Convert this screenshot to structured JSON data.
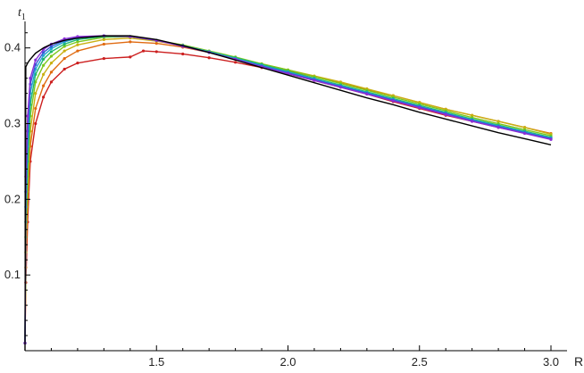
{
  "chart_data": {
    "type": "line",
    "ylabel": "t",
    "ylabel_subscript": "1",
    "xlabel": "R",
    "xlim": [
      1.0,
      3.0
    ],
    "ylim": [
      0.0,
      0.435
    ],
    "xticks": [
      1.5,
      2.0,
      2.5,
      3.0
    ],
    "xtick_labels": [
      "1.5",
      "2.0",
      "2.5",
      "3.0"
    ],
    "yticks": [
      0.1,
      0.2,
      0.3,
      0.4
    ],
    "ytick_labels": [
      "0.1",
      "0.2",
      "0.3",
      "0.4"
    ],
    "grid": false,
    "series": [
      {
        "color": "#cc1f1f",
        "markers": true,
        "x": [
          1.0,
          1.003,
          1.01,
          1.02,
          1.04,
          1.07,
          1.1,
          1.15,
          1.2,
          1.3,
          1.4,
          1.45,
          1.5,
          1.6,
          1.7,
          1.8,
          1.9,
          2.0,
          2.1,
          2.2,
          2.3,
          2.4,
          2.5,
          2.6,
          2.7,
          2.8,
          2.9,
          3.0
        ],
        "y": [
          0.01,
          0.09,
          0.17,
          0.25,
          0.3,
          0.335,
          0.355,
          0.372,
          0.38,
          0.386,
          0.388,
          0.396,
          0.395,
          0.392,
          0.387,
          0.381,
          0.374,
          0.366,
          0.357,
          0.348,
          0.339,
          0.329,
          0.32,
          0.311,
          0.303,
          0.295,
          0.288,
          0.281
        ]
      },
      {
        "color": "#e06a10",
        "markers": true,
        "x": [
          1.0,
          1.003,
          1.01,
          1.02,
          1.04,
          1.07,
          1.1,
          1.15,
          1.2,
          1.3,
          1.4,
          1.5,
          1.6,
          1.7,
          1.8,
          1.9,
          2.0,
          2.1,
          2.2,
          2.3,
          2.4,
          2.5,
          2.6,
          2.7,
          2.8,
          2.9,
          3.0
        ],
        "y": [
          0.01,
          0.11,
          0.19,
          0.27,
          0.32,
          0.35,
          0.368,
          0.386,
          0.396,
          0.405,
          0.408,
          0.406,
          0.401,
          0.394,
          0.386,
          0.378,
          0.37,
          0.362,
          0.354,
          0.345,
          0.337,
          0.328,
          0.319,
          0.311,
          0.303,
          0.295,
          0.287
        ]
      },
      {
        "color": "#c9b012",
        "markers": true,
        "x": [
          1.0,
          1.003,
          1.01,
          1.02,
          1.04,
          1.07,
          1.1,
          1.15,
          1.2,
          1.3,
          1.4,
          1.5,
          1.6,
          1.7,
          1.8,
          1.9,
          2.0,
          2.1,
          2.2,
          2.3,
          2.4,
          2.5,
          2.6,
          2.7,
          2.8,
          2.9,
          3.0
        ],
        "y": [
          0.01,
          0.13,
          0.21,
          0.29,
          0.34,
          0.365,
          0.38,
          0.396,
          0.404,
          0.411,
          0.413,
          0.409,
          0.403,
          0.395,
          0.387,
          0.379,
          0.371,
          0.363,
          0.355,
          0.346,
          0.337,
          0.328,
          0.319,
          0.311,
          0.303,
          0.295,
          0.286
        ]
      },
      {
        "color": "#7cc81e",
        "markers": true,
        "x": [
          1.0,
          1.003,
          1.01,
          1.02,
          1.04,
          1.07,
          1.1,
          1.15,
          1.2,
          1.3,
          1.4,
          1.5,
          1.6,
          1.7,
          1.8,
          1.9,
          2.0,
          2.1,
          2.2,
          2.3,
          2.4,
          2.5,
          2.6,
          2.7,
          2.8,
          2.9,
          3.0
        ],
        "y": [
          0.01,
          0.15,
          0.23,
          0.31,
          0.355,
          0.377,
          0.389,
          0.402,
          0.408,
          0.414,
          0.415,
          0.41,
          0.404,
          0.396,
          0.388,
          0.379,
          0.371,
          0.362,
          0.353,
          0.344,
          0.335,
          0.326,
          0.317,
          0.308,
          0.3,
          0.292,
          0.284
        ]
      },
      {
        "color": "#1fb86a",
        "markers": true,
        "x": [
          1.0,
          1.003,
          1.01,
          1.02,
          1.04,
          1.07,
          1.1,
          1.15,
          1.2,
          1.3,
          1.4,
          1.5,
          1.6,
          1.7,
          1.8,
          1.9,
          2.0,
          2.1,
          2.2,
          2.3,
          2.4,
          2.5,
          2.6,
          2.7,
          2.8,
          2.9,
          3.0
        ],
        "y": [
          0.01,
          0.17,
          0.25,
          0.325,
          0.365,
          0.385,
          0.395,
          0.405,
          0.411,
          0.415,
          0.415,
          0.41,
          0.403,
          0.395,
          0.387,
          0.378,
          0.369,
          0.36,
          0.351,
          0.342,
          0.333,
          0.324,
          0.315,
          0.306,
          0.298,
          0.29,
          0.282
        ]
      },
      {
        "color": "#21a7cf",
        "markers": true,
        "x": [
          1.0,
          1.003,
          1.01,
          1.02,
          1.04,
          1.07,
          1.1,
          1.15,
          1.2,
          1.3,
          1.4,
          1.5,
          1.6,
          1.7,
          1.8,
          1.9,
          2.0,
          2.1,
          2.2,
          2.3,
          2.4,
          2.5,
          2.6,
          2.7,
          2.8,
          2.9,
          3.0
        ],
        "y": [
          0.01,
          0.19,
          0.27,
          0.34,
          0.372,
          0.39,
          0.399,
          0.408,
          0.413,
          0.416,
          0.415,
          0.41,
          0.403,
          0.395,
          0.386,
          0.377,
          0.368,
          0.359,
          0.35,
          0.341,
          0.332,
          0.323,
          0.314,
          0.305,
          0.297,
          0.289,
          0.281
        ]
      },
      {
        "color": "#3559d6",
        "markers": true,
        "x": [
          1.0,
          1.003,
          1.01,
          1.02,
          1.04,
          1.07,
          1.1,
          1.15,
          1.2,
          1.3,
          1.4,
          1.5,
          1.6,
          1.7,
          1.8,
          1.9,
          2.0,
          2.1,
          2.2,
          2.3,
          2.4,
          2.5,
          2.6,
          2.7,
          2.8,
          2.9,
          3.0
        ],
        "y": [
          0.01,
          0.21,
          0.29,
          0.352,
          0.378,
          0.394,
          0.402,
          0.41,
          0.414,
          0.416,
          0.415,
          0.41,
          0.403,
          0.394,
          0.385,
          0.376,
          0.367,
          0.358,
          0.349,
          0.34,
          0.331,
          0.322,
          0.313,
          0.304,
          0.296,
          0.288,
          0.28
        ]
      },
      {
        "color": "#8a2fd6",
        "markers": true,
        "x": [
          1.0,
          1.003,
          1.01,
          1.02,
          1.04,
          1.07,
          1.1,
          1.15,
          1.2,
          1.3,
          1.4,
          1.5,
          1.6,
          1.7,
          1.8,
          1.9,
          2.0,
          2.1,
          2.2,
          2.3,
          2.4,
          2.5,
          2.6,
          2.7,
          2.8,
          2.9,
          3.0
        ],
        "y": [
          0.01,
          0.23,
          0.31,
          0.36,
          0.384,
          0.398,
          0.405,
          0.412,
          0.415,
          0.416,
          0.415,
          0.41,
          0.402,
          0.394,
          0.385,
          0.375,
          0.366,
          0.357,
          0.348,
          0.339,
          0.33,
          0.321,
          0.312,
          0.303,
          0.295,
          0.287,
          0.279
        ]
      },
      {
        "color": "#000000",
        "markers": false,
        "x": [
          1.0,
          1.003,
          1.01,
          1.02,
          1.04,
          1.07,
          1.1,
          1.15,
          1.2,
          1.3,
          1.4,
          1.5,
          1.6,
          1.7,
          1.8,
          1.9,
          2.0,
          2.1,
          2.2,
          2.3,
          2.4,
          2.5,
          2.6,
          2.7,
          2.8,
          2.9,
          3.0
        ],
        "y": [
          0.0,
          0.375,
          0.38,
          0.385,
          0.393,
          0.4,
          0.405,
          0.41,
          0.413,
          0.416,
          0.416,
          0.411,
          0.403,
          0.394,
          0.384,
          0.374,
          0.364,
          0.354,
          0.344,
          0.334,
          0.325,
          0.315,
          0.306,
          0.297,
          0.288,
          0.28,
          0.272
        ]
      }
    ]
  }
}
